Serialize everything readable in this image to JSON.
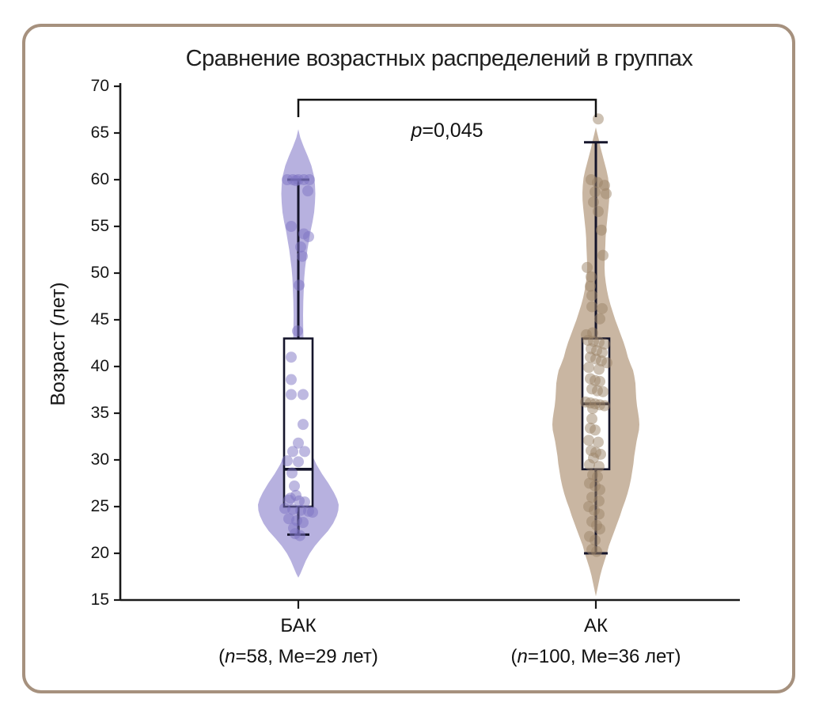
{
  "title": "Сравнение возрастных распределений в группах",
  "y_axis": {
    "label": "Возраст (лет)",
    "ticks": [
      70,
      65,
      60,
      55,
      50,
      45,
      40,
      35,
      30,
      25,
      20,
      15
    ]
  },
  "annotation": {
    "var": "p",
    "rest": "=0,045"
  },
  "colors": {
    "frame": "#a6917e",
    "axis": "#1a1a1a",
    "box_stroke": "#15152b",
    "violin_bak": "#b7b1df",
    "dot_bak": "#7d74c4",
    "violin_ak": "#c9b6a2",
    "dot_ak": "#9c8368",
    "text": "#161616"
  },
  "chart_data": {
    "type": "violin",
    "title": "Сравнение возрастных распределений в группах",
    "ylabel": "Возраст (лет)",
    "ylim": [
      15,
      70
    ],
    "ytick_step": 5,
    "annotation": "p=0,045",
    "annotation_bracket": {
      "from_group": 0,
      "to_group": 1
    },
    "grid": false,
    "groups": [
      {
        "label": "БАК",
        "sublabel": {
          "open": "(",
          "var": "n",
          "rest": "=58, Me=29 лет)"
        },
        "n": 58,
        "median": 29,
        "q1": 25,
        "q3": 43,
        "whisker_low": 22,
        "whisker_high": 60,
        "violin_range": [
          17.4,
          65.4
        ],
        "violin_profile": [
          [
            65.4,
            0
          ],
          [
            64.5,
            2.5
          ],
          [
            63.5,
            7
          ],
          [
            62.5,
            12
          ],
          [
            61.5,
            16.5
          ],
          [
            60.5,
            19.5
          ],
          [
            59.5,
            21
          ],
          [
            58.5,
            21.5
          ],
          [
            57.5,
            21
          ],
          [
            56.5,
            20
          ],
          [
            55.5,
            18
          ],
          [
            54.5,
            15.5
          ],
          [
            53.5,
            13.5
          ],
          [
            52.5,
            11.5
          ],
          [
            51.5,
            10
          ],
          [
            50.5,
            8.5
          ],
          [
            49.5,
            7.5
          ],
          [
            48.5,
            7
          ],
          [
            47,
            6.3
          ],
          [
            45.5,
            6
          ],
          [
            44,
            6.2
          ],
          [
            42,
            6.8
          ],
          [
            40,
            7.4
          ],
          [
            38,
            8
          ],
          [
            36,
            8.6
          ],
          [
            34,
            9.6
          ],
          [
            32.5,
            11.5
          ],
          [
            31.5,
            14
          ],
          [
            30.5,
            17.5
          ],
          [
            29.5,
            23
          ],
          [
            28.5,
            30
          ],
          [
            27.5,
            38
          ],
          [
            26.5,
            45
          ],
          [
            25.8,
            49
          ],
          [
            25.2,
            51
          ],
          [
            24.6,
            50.5
          ],
          [
            24,
            48.5
          ],
          [
            23.2,
            44
          ],
          [
            22.4,
            37.5
          ],
          [
            21.6,
            29
          ],
          [
            20.8,
            21
          ],
          [
            20,
            14.5
          ],
          [
            19.2,
            9.5
          ],
          [
            18.4,
            5.5
          ],
          [
            17.8,
            2.5
          ],
          [
            17.4,
            0
          ]
        ],
        "points": [
          [
            60,
            -14
          ],
          [
            60,
            -7
          ],
          [
            60,
            0
          ],
          [
            60,
            7
          ],
          [
            60,
            14
          ],
          [
            59.9,
            -3
          ],
          [
            58.8,
            12
          ],
          [
            55,
            -9
          ],
          [
            54.2,
            7
          ],
          [
            53.9,
            13
          ],
          [
            52.8,
            3
          ],
          [
            51.8,
            5
          ],
          [
            48.7,
            1
          ],
          [
            43.8,
            -1
          ],
          [
            41,
            -9
          ],
          [
            38.6,
            -9
          ],
          [
            37,
            -9
          ],
          [
            37,
            6
          ],
          [
            33.8,
            6
          ],
          [
            31.8,
            0
          ],
          [
            30.9,
            -7
          ],
          [
            30.9,
            8
          ],
          [
            29.9,
            -14
          ],
          [
            29.8,
            0
          ],
          [
            28.6,
            -8
          ],
          [
            27.2,
            -5
          ],
          [
            26.2,
            -3
          ],
          [
            25.9,
            -10
          ],
          [
            25.7,
            -12
          ],
          [
            25.6,
            1
          ],
          [
            25.5,
            8
          ],
          [
            24.8,
            -17
          ],
          [
            24.7,
            -7
          ],
          [
            24.6,
            3
          ],
          [
            24.5,
            13
          ],
          [
            24.4,
            18
          ],
          [
            23.7,
            -12
          ],
          [
            23.5,
            -2
          ],
          [
            23.3,
            6
          ],
          [
            22.7,
            -6
          ],
          [
            22.1,
            -4
          ],
          [
            21.9,
            2
          ]
        ]
      },
      {
        "label": "АК",
        "sublabel": {
          "open": "(",
          "var": "n",
          "rest": "=100, Me=36 лет)"
        },
        "n": 100,
        "median": 36,
        "q1": 29,
        "q3": 43,
        "whisker_low": 20,
        "whisker_high": 64,
        "outliers": [
          66.5
        ],
        "violin_range": [
          15.4,
          65.6
        ],
        "violin_profile": [
          [
            65.6,
            0
          ],
          [
            64.9,
            2
          ],
          [
            64.2,
            4
          ],
          [
            63.4,
            6
          ],
          [
            62.6,
            8.5
          ],
          [
            61.8,
            11
          ],
          [
            61,
            13.5
          ],
          [
            60.2,
            15.5
          ],
          [
            59.4,
            16.5
          ],
          [
            58.6,
            17
          ],
          [
            57.8,
            16.8
          ],
          [
            57,
            16
          ],
          [
            56.2,
            15
          ],
          [
            55.4,
            14
          ],
          [
            54.6,
            13
          ],
          [
            53.8,
            12.3
          ],
          [
            53,
            12
          ],
          [
            52.2,
            11.6
          ],
          [
            51.4,
            11.2
          ],
          [
            50.6,
            11
          ],
          [
            49.8,
            11.4
          ],
          [
            49,
            12.5
          ],
          [
            48.2,
            14
          ],
          [
            47.4,
            16
          ],
          [
            46.6,
            18.5
          ],
          [
            45.8,
            21.5
          ],
          [
            45,
            24.5
          ],
          [
            44.2,
            28
          ],
          [
            43.4,
            31.5
          ],
          [
            42.6,
            35
          ],
          [
            41.8,
            38
          ],
          [
            41,
            40.5
          ],
          [
            40.2,
            44
          ],
          [
            39.6,
            47
          ],
          [
            39,
            48.5
          ],
          [
            38.2,
            50
          ],
          [
            37.4,
            50.5
          ],
          [
            36.6,
            51
          ],
          [
            35.8,
            52
          ],
          [
            35,
            53.5
          ],
          [
            34.4,
            54.5
          ],
          [
            33.8,
            55
          ],
          [
            33.2,
            54.5
          ],
          [
            32.6,
            53
          ],
          [
            32,
            51.5
          ],
          [
            31.2,
            50
          ],
          [
            30.4,
            48.5
          ],
          [
            29.6,
            47.5
          ],
          [
            28.8,
            46
          ],
          [
            28,
            44.5
          ],
          [
            27.2,
            42.5
          ],
          [
            26.4,
            40
          ],
          [
            25.6,
            37
          ],
          [
            24.8,
            33.5
          ],
          [
            24,
            30.5
          ],
          [
            23.2,
            27
          ],
          [
            22.4,
            23.5
          ],
          [
            21.6,
            20
          ],
          [
            20.8,
            16.5
          ],
          [
            20,
            14
          ],
          [
            19.2,
            11
          ],
          [
            18.4,
            8
          ],
          [
            17.6,
            5.5
          ],
          [
            16.8,
            3.5
          ],
          [
            16,
            1.5
          ],
          [
            15.4,
            0
          ]
        ],
        "points": [
          [
            66.5,
            3
          ],
          [
            60,
            -6
          ],
          [
            59.7,
            2
          ],
          [
            59.4,
            11
          ],
          [
            58.7,
            -1
          ],
          [
            58.5,
            13
          ],
          [
            57.6,
            -3
          ],
          [
            56.6,
            3
          ],
          [
            54.6,
            7
          ],
          [
            51.9,
            9
          ],
          [
            50.6,
            -11
          ],
          [
            49.6,
            -6
          ],
          [
            48.6,
            -7
          ],
          [
            47.6,
            -5
          ],
          [
            46.4,
            -5
          ],
          [
            46.2,
            8
          ],
          [
            45.1,
            5
          ],
          [
            43.6,
            -4
          ],
          [
            43.4,
            -12
          ],
          [
            42.8,
            -10
          ],
          [
            42.7,
            -3
          ],
          [
            42.6,
            4
          ],
          [
            42.4,
            11
          ],
          [
            41.9,
            -6
          ],
          [
            41.7,
            1
          ],
          [
            41.5,
            8
          ],
          [
            41,
            -7
          ],
          [
            40.8,
            0
          ],
          [
            40.6,
            7
          ],
          [
            40.4,
            14
          ],
          [
            39.9,
            -9
          ],
          [
            39.7,
            4
          ],
          [
            38.7,
            -7
          ],
          [
            38.5,
            -1
          ],
          [
            38.4,
            5
          ],
          [
            37.6,
            -5
          ],
          [
            37.4,
            2
          ],
          [
            37.3,
            9
          ],
          [
            36.2,
            -13
          ],
          [
            36.1,
            -7
          ],
          [
            36,
            -1
          ],
          [
            35.9,
            5
          ],
          [
            35.8,
            11
          ],
          [
            35.5,
            -4
          ],
          [
            34.4,
            -5
          ],
          [
            33.4,
            -7
          ],
          [
            33.2,
            -1
          ],
          [
            32.1,
            -9
          ],
          [
            31.9,
            3
          ],
          [
            31,
            -6
          ],
          [
            30.8,
            0
          ],
          [
            30.6,
            6
          ],
          [
            30.2,
            -3
          ],
          [
            29.5,
            -8
          ],
          [
            29.3,
            4
          ],
          [
            28.4,
            -4
          ],
          [
            28.2,
            2
          ],
          [
            27.5,
            -8
          ],
          [
            27.2,
            -1
          ],
          [
            26.8,
            5
          ],
          [
            26,
            -5
          ],
          [
            25.6,
            4
          ],
          [
            25,
            -9
          ],
          [
            24.6,
            -2
          ],
          [
            24.2,
            4
          ],
          [
            23.4,
            -5
          ],
          [
            23,
            1
          ],
          [
            22.6,
            5
          ],
          [
            21.8,
            -8
          ],
          [
            21.4,
            -1
          ],
          [
            20.4,
            -5
          ],
          [
            20.2,
            1
          ]
        ]
      }
    ]
  }
}
